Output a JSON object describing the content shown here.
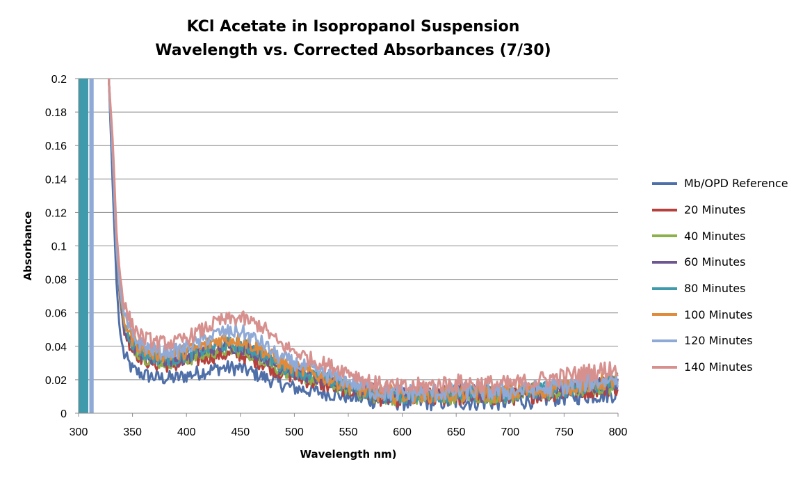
{
  "chart_data": {
    "type": "line",
    "title_line1": "KCl Acetate in Isopropanol Suspension",
    "title_line2": "Wavelength vs. Corrected Absorbances (7/30)",
    "xlabel": "Wavelength nm)",
    "ylabel": "Absorbance",
    "xlim": [
      300,
      800
    ],
    "ylim": [
      0,
      0.2
    ],
    "x_ticks": [
      "300",
      "350",
      "400",
      "450",
      "500",
      "550",
      "600",
      "650",
      "700",
      "750",
      "800"
    ],
    "y_ticks": [
      "0",
      "0.02",
      "0.04",
      "0.06",
      "0.08",
      "0.1",
      "0.12",
      "0.14",
      "0.16",
      "0.18",
      "0.2"
    ],
    "grid": "horizontal",
    "legend_position": "right",
    "series": [
      {
        "name": "Mb/OPD Reference",
        "color": "#4F6FA8",
        "x": [
          328,
          332,
          335,
          338,
          342,
          350,
          360,
          375,
          390,
          410,
          430,
          450,
          470,
          485,
          500,
          520,
          550,
          575,
          600,
          650,
          700,
          750,
          800
        ],
        "y": [
          0.2,
          0.13,
          0.08,
          0.05,
          0.035,
          0.026,
          0.023,
          0.021,
          0.021,
          0.024,
          0.027,
          0.027,
          0.022,
          0.018,
          0.015,
          0.013,
          0.01,
          0.008,
          0.007,
          0.007,
          0.007,
          0.01,
          0.012
        ]
      },
      {
        "name": "20 Minutes",
        "color": "#B5403C",
        "x": [
          328,
          332,
          335,
          338,
          342,
          350,
          360,
          375,
          390,
          410,
          430,
          450,
          470,
          485,
          500,
          520,
          550,
          575,
          600,
          650,
          700,
          750,
          800
        ],
        "y": [
          0.2,
          0.15,
          0.1,
          0.07,
          0.05,
          0.038,
          0.032,
          0.029,
          0.029,
          0.032,
          0.035,
          0.035,
          0.03,
          0.025,
          0.022,
          0.018,
          0.014,
          0.01,
          0.009,
          0.01,
          0.01,
          0.013,
          0.016
        ]
      },
      {
        "name": "40 Minutes",
        "color": "#8CB04C",
        "x": [
          328,
          332,
          335,
          338,
          342,
          350,
          360,
          375,
          390,
          410,
          430,
          450,
          470,
          485,
          500,
          520,
          550,
          575,
          600,
          650,
          700,
          750,
          800
        ],
        "y": [
          0.2,
          0.15,
          0.1,
          0.072,
          0.052,
          0.04,
          0.034,
          0.031,
          0.031,
          0.034,
          0.038,
          0.038,
          0.033,
          0.027,
          0.024,
          0.02,
          0.015,
          0.011,
          0.01,
          0.011,
          0.011,
          0.014,
          0.017
        ]
      },
      {
        "name": "60 Minutes",
        "color": "#6E568F",
        "x": [
          328,
          332,
          335,
          338,
          342,
          350,
          360,
          375,
          390,
          410,
          430,
          450,
          470,
          485,
          500,
          520,
          550,
          575,
          600,
          650,
          700,
          750,
          800
        ],
        "y": [
          0.2,
          0.15,
          0.1,
          0.073,
          0.053,
          0.041,
          0.035,
          0.032,
          0.032,
          0.036,
          0.04,
          0.04,
          0.035,
          0.028,
          0.025,
          0.021,
          0.016,
          0.012,
          0.011,
          0.012,
          0.012,
          0.015,
          0.018
        ]
      },
      {
        "name": "80 Minutes",
        "color": "#3F9AAB",
        "x": [
          328,
          332,
          335,
          338,
          342,
          350,
          360,
          375,
          390,
          410,
          430,
          450,
          470,
          485,
          500,
          520,
          550,
          575,
          600,
          650,
          700,
          750,
          800
        ],
        "y": [
          0.2,
          0.15,
          0.1,
          0.074,
          0.054,
          0.042,
          0.036,
          0.033,
          0.033,
          0.037,
          0.041,
          0.041,
          0.036,
          0.029,
          0.026,
          0.022,
          0.016,
          0.012,
          0.011,
          0.012,
          0.012,
          0.015,
          0.019
        ]
      },
      {
        "name": "100 Minutes",
        "color": "#E08A3C",
        "x": [
          328,
          332,
          335,
          338,
          342,
          350,
          360,
          375,
          390,
          410,
          430,
          450,
          470,
          485,
          500,
          520,
          550,
          575,
          600,
          650,
          700,
          750,
          800
        ],
        "y": [
          0.2,
          0.15,
          0.1,
          0.075,
          0.056,
          0.044,
          0.038,
          0.035,
          0.035,
          0.039,
          0.044,
          0.044,
          0.038,
          0.031,
          0.027,
          0.023,
          0.017,
          0.012,
          0.011,
          0.012,
          0.012,
          0.016,
          0.02
        ]
      },
      {
        "name": "120 Minutes",
        "color": "#8FAAD6",
        "x": [
          328,
          332,
          335,
          338,
          342,
          350,
          360,
          375,
          390,
          410,
          430,
          450,
          470,
          485,
          500,
          520,
          550,
          575,
          600,
          650,
          700,
          750,
          800
        ],
        "y": [
          0.2,
          0.15,
          0.1,
          0.076,
          0.058,
          0.046,
          0.04,
          0.037,
          0.037,
          0.042,
          0.048,
          0.049,
          0.042,
          0.034,
          0.03,
          0.025,
          0.019,
          0.013,
          0.012,
          0.013,
          0.013,
          0.016,
          0.021
        ]
      },
      {
        "name": "140 Minutes",
        "color": "#D6908E",
        "x": [
          328,
          332,
          335,
          338,
          342,
          350,
          360,
          375,
          390,
          410,
          430,
          450,
          470,
          485,
          500,
          520,
          550,
          575,
          600,
          650,
          700,
          750,
          800
        ],
        "y": [
          0.2,
          0.16,
          0.11,
          0.085,
          0.065,
          0.052,
          0.045,
          0.042,
          0.042,
          0.048,
          0.055,
          0.057,
          0.052,
          0.042,
          0.037,
          0.031,
          0.025,
          0.017,
          0.015,
          0.018,
          0.017,
          0.022,
          0.027
        ]
      }
    ],
    "left_edge_bars": [
      {
        "x": [
          300,
          309
        ],
        "color": "#3F9AAB"
      },
      {
        "x": [
          310,
          314
        ],
        "color": "#8FAAD6"
      }
    ]
  }
}
